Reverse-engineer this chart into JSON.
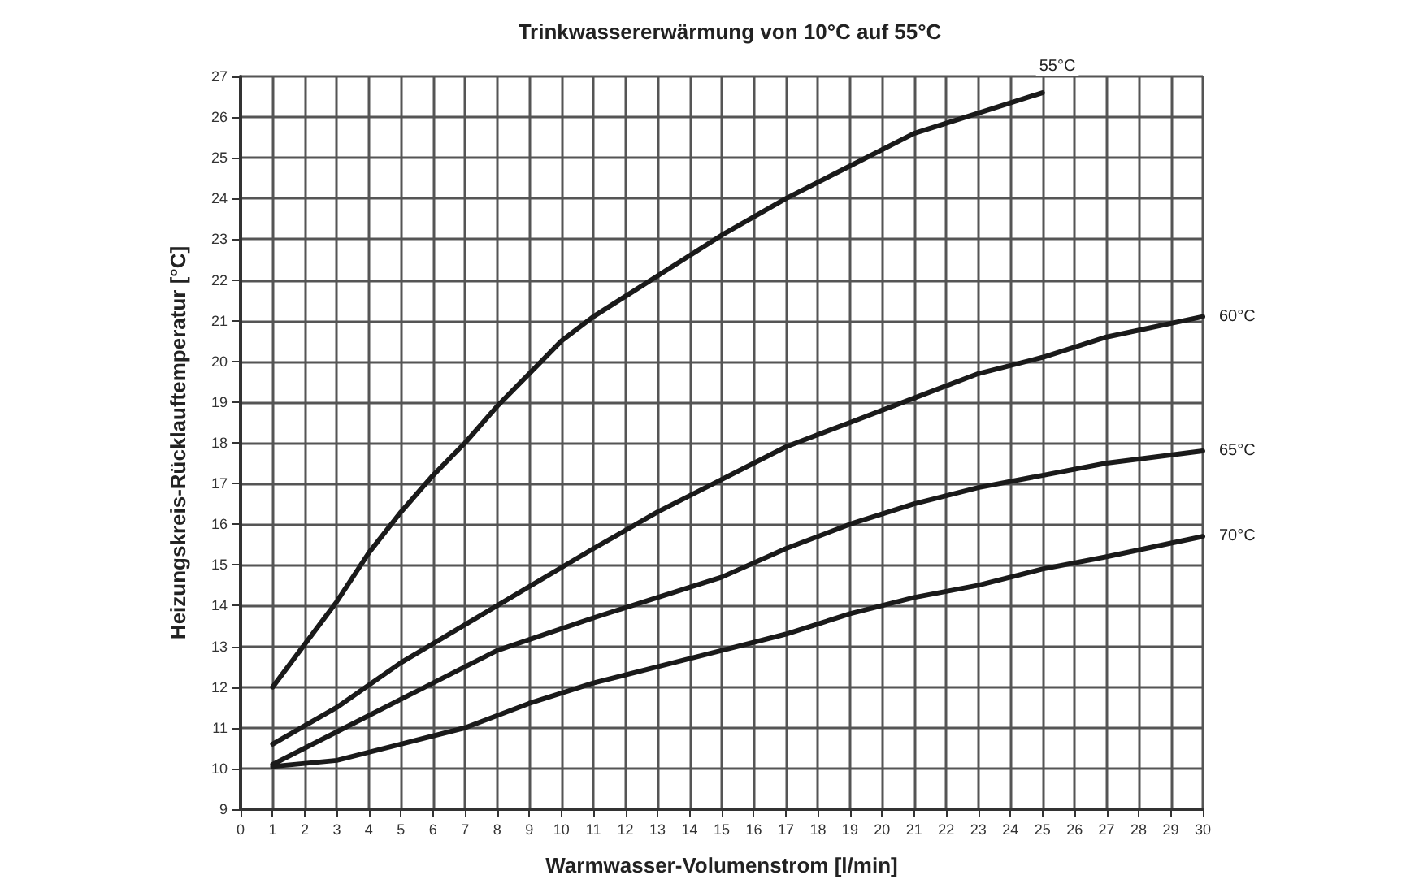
{
  "chart_data": {
    "type": "line",
    "title": "Trinkwassererwärmung von 10°C auf 55°C",
    "xlabel": "Warmwasser-Volumenstrom [l/min]",
    "ylabel": "Heizungskreis-Rücklauftemperatur [°C]",
    "xlim": [
      0,
      30
    ],
    "xticks": [
      0,
      1,
      2,
      3,
      4,
      5,
      6,
      7,
      8,
      9,
      10,
      11,
      12,
      13,
      14,
      15,
      16,
      17,
      18,
      19,
      20,
      21,
      22,
      23,
      24,
      25,
      26,
      27,
      28,
      29,
      30
    ],
    "ylim": [
      9,
      27
    ],
    "yticks": [
      9,
      10,
      11,
      12,
      13,
      14,
      15,
      16,
      17,
      18,
      19,
      20,
      21,
      22,
      23,
      24,
      25,
      26,
      27
    ],
    "grid": true,
    "marker": "none",
    "line_style": "solid",
    "series": [
      {
        "name": "55°C",
        "color": "#1a1a1a",
        "x": [
          1,
          3,
          4,
          5,
          6,
          7,
          8,
          9,
          10,
          11,
          12,
          13,
          14,
          15,
          17,
          19,
          21,
          23,
          25
        ],
        "values": [
          12,
          14.1,
          15.3,
          16.3,
          17.2,
          18,
          18.9,
          19.7,
          20.5,
          21.1,
          21.6,
          22.1,
          22.6,
          23.1,
          24,
          24.8,
          25.6,
          26.1,
          26.6
        ]
      },
      {
        "name": "60°C",
        "color": "#1a1a1a",
        "x": [
          1,
          3,
          5,
          8,
          11,
          13,
          15,
          17,
          19,
          21,
          23,
          25,
          27,
          30
        ],
        "values": [
          10.6,
          11.5,
          12.6,
          14,
          15.4,
          16.3,
          17.1,
          17.9,
          18.5,
          19.1,
          19.7,
          20.1,
          20.6,
          21.1
        ]
      },
      {
        "name": "65°C",
        "color": "#1a1a1a",
        "x": [
          1,
          3,
          5,
          8,
          11,
          13,
          15,
          17,
          19,
          21,
          23,
          25,
          27,
          30
        ],
        "values": [
          10.1,
          10.9,
          11.7,
          12.9,
          13.7,
          14.2,
          14.7,
          15.4,
          16,
          16.5,
          16.9,
          17.2,
          17.5,
          17.8
        ]
      },
      {
        "name": "70°C",
        "color": "#1a1a1a",
        "x": [
          1,
          3,
          5,
          7,
          9,
          11,
          13,
          15,
          17,
          19,
          21,
          23,
          25,
          27,
          30
        ],
        "values": [
          10.05,
          10.2,
          10.6,
          11,
          11.6,
          12.1,
          12.5,
          12.9,
          13.3,
          13.8,
          14.2,
          14.5,
          14.9,
          15.2,
          15.7
        ]
      }
    ]
  }
}
